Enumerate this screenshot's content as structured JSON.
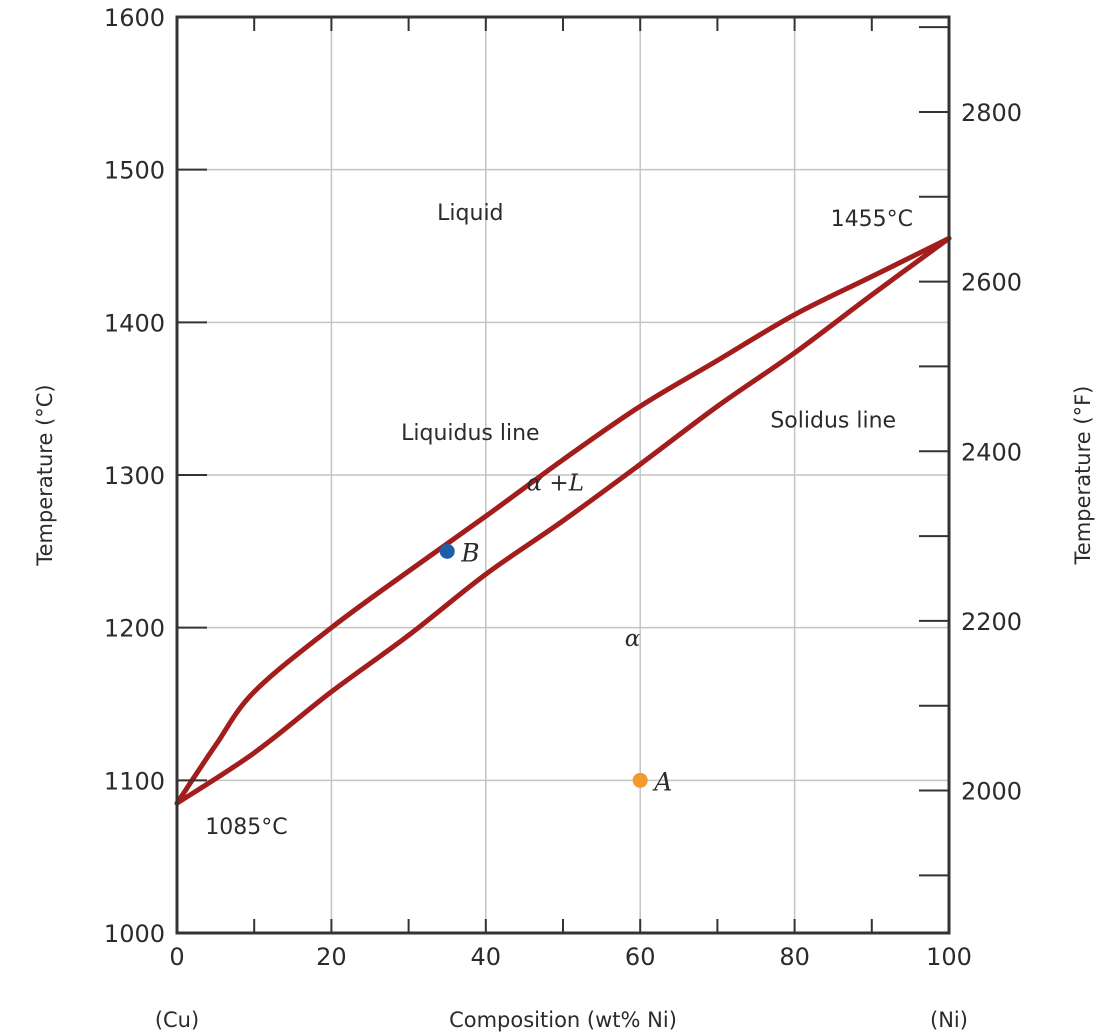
{
  "chart_data": {
    "type": "line",
    "title": "",
    "xlabel": "Composition (wt% Ni)",
    "ylabel": "Temperature (°C)",
    "y2label": "Temperature (°F)",
    "x_end_labels": {
      "left": "(Cu)",
      "right": "(Ni)"
    },
    "xlim": [
      0,
      100
    ],
    "ylim": [
      1000,
      1600
    ],
    "y2lim": [
      1832,
      2912
    ],
    "xticks": [
      0,
      20,
      40,
      60,
      80,
      100
    ],
    "xticks_minor": [
      10,
      30,
      50,
      70,
      90
    ],
    "yticks": [
      1000,
      1100,
      1200,
      1300,
      1400,
      1500,
      1600
    ],
    "y2ticks": [
      2000,
      2200,
      2400,
      2600,
      2800
    ],
    "y2ticks_minor": [
      1900,
      2100,
      2300,
      2500,
      2700,
      2900
    ],
    "grid": true,
    "line_color": "#a31d1d",
    "series": [
      {
        "name": "Liquidus line",
        "x": [
          0,
          5,
          10,
          20,
          30,
          40,
          50,
          60,
          70,
          80,
          90,
          100
        ],
        "y": [
          1085,
          1123,
          1158,
          1200,
          1237,
          1273,
          1310,
          1345,
          1375,
          1405,
          1430,
          1455
        ]
      },
      {
        "name": "Solidus line",
        "x": [
          0,
          10,
          20,
          30,
          40,
          50,
          60,
          70,
          80,
          90,
          100
        ],
        "y": [
          1085,
          1118,
          1158,
          1195,
          1235,
          1270,
          1307,
          1345,
          1380,
          1418,
          1455
        ]
      }
    ],
    "points": [
      {
        "label": "A",
        "x": 60,
        "y": 1100,
        "color": "#f29a2e"
      },
      {
        "label": "B",
        "x": 35,
        "y": 1250,
        "color": "#1f5fa8"
      }
    ],
    "annotations": {
      "liquid": {
        "text": "Liquid",
        "x": 38,
        "y": 1467
      },
      "liquidus_line": {
        "text": "Liquidus line",
        "x": 38,
        "y": 1323
      },
      "solidus_line": {
        "text": "Solidus line",
        "x": 85,
        "y": 1331
      },
      "alpha_plus_l": {
        "text": "α +L",
        "x": 49,
        "y": 1290
      },
      "alpha": {
        "text": "α",
        "x": 59,
        "y": 1188
      },
      "cu_melting": {
        "text": "1085°C",
        "x": 9,
        "y": 1065
      },
      "ni_melting": {
        "text": "1455°C",
        "x": 90,
        "y": 1463
      }
    }
  }
}
